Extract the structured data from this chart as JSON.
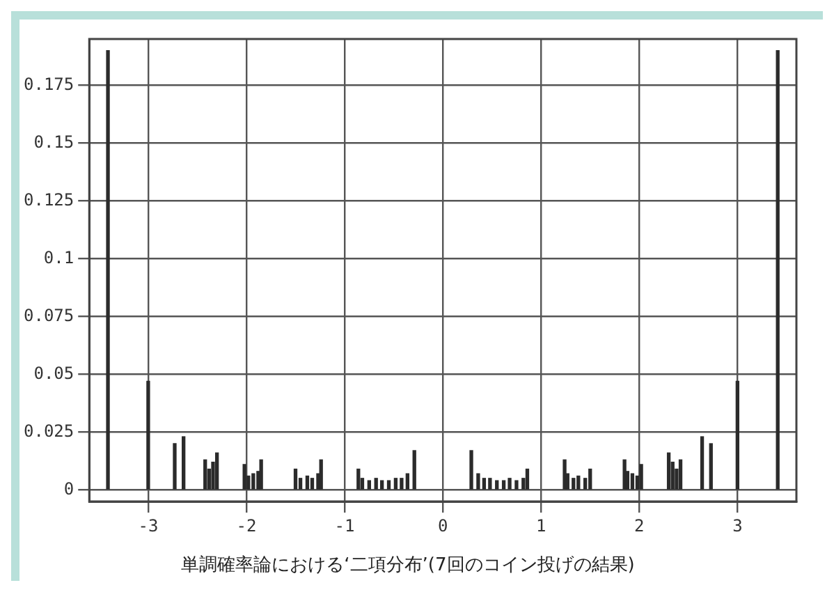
{
  "chart_data": {
    "type": "bar",
    "title": "単調確率論における‘二項分布’(7回のコイン投げの結果)",
    "x": [
      -3.41,
      -3.0,
      -2.73,
      -2.64,
      -2.42,
      -2.38,
      -2.34,
      -2.3,
      -2.02,
      -1.98,
      -1.93,
      -1.88,
      -1.85,
      -1.5,
      -1.45,
      -1.38,
      -1.33,
      -1.27,
      -1.24,
      -0.86,
      -0.82,
      -0.75,
      -0.68,
      -0.62,
      -0.55,
      -0.48,
      -0.42,
      -0.36,
      -0.29,
      0.29,
      0.36,
      0.42,
      0.48,
      0.55,
      0.62,
      0.68,
      0.75,
      0.82,
      0.86,
      1.24,
      1.27,
      1.33,
      1.38,
      1.45,
      1.5,
      1.85,
      1.88,
      1.93,
      1.98,
      2.02,
      2.3,
      2.34,
      2.38,
      2.42,
      2.64,
      2.73,
      3.0,
      3.41
    ],
    "values": [
      0.19,
      0.047,
      0.02,
      0.023,
      0.013,
      0.009,
      0.012,
      0.016,
      0.011,
      0.006,
      0.007,
      0.008,
      0.013,
      0.009,
      0.005,
      0.006,
      0.005,
      0.007,
      0.013,
      0.009,
      0.005,
      0.004,
      0.005,
      0.004,
      0.004,
      0.005,
      0.005,
      0.007,
      0.017,
      0.017,
      0.007,
      0.005,
      0.005,
      0.004,
      0.004,
      0.005,
      0.004,
      0.005,
      0.009,
      0.013,
      0.007,
      0.005,
      0.006,
      0.005,
      0.009,
      0.013,
      0.008,
      0.007,
      0.006,
      0.011,
      0.016,
      0.012,
      0.009,
      0.013,
      0.023,
      0.02,
      0.047,
      0.19
    ],
    "color": "#2b2b2b",
    "xlim": [
      -3.6,
      3.6
    ],
    "xticks": [
      -3,
      -2,
      -1,
      0,
      1,
      2,
      3
    ],
    "ylim": [
      -0.005,
      0.195
    ],
    "yticks": [
      0,
      0.025,
      0.05,
      0.075,
      0.1,
      0.125,
      0.15,
      0.175
    ],
    "grid": true
  }
}
